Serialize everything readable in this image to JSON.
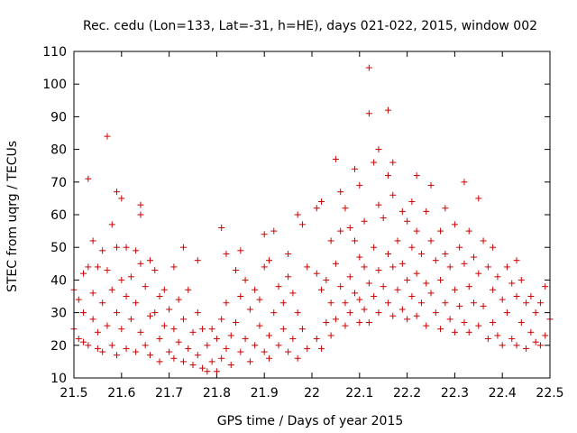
{
  "chart_data": {
    "type": "scatter",
    "title": "Rec. cedu (Lon=133, Lat=-31, h=HE), days 021-022, 2015, window 002",
    "xlabel": "GPS time / Days of year 2015",
    "ylabel": "STEC from uqrg / TECUs",
    "xlim": [
      21.5,
      22.5
    ],
    "ylim": [
      10,
      110
    ],
    "xticks": [
      "21.5",
      "21.6",
      "21.7",
      "21.8",
      "21.9",
      "22",
      "22.1",
      "22.2",
      "22.3",
      "22.4",
      "22.5"
    ],
    "yticks": [
      "10",
      "20",
      "30",
      "40",
      "50",
      "60",
      "70",
      "80",
      "90",
      "100",
      "110"
    ],
    "marker": "+",
    "color": "#cc0000",
    "series": [
      {
        "name": "STEC",
        "points": [
          [
            21.5,
            37
          ],
          [
            21.5,
            25
          ],
          [
            21.51,
            22
          ],
          [
            21.51,
            34
          ],
          [
            21.52,
            42
          ],
          [
            21.52,
            21
          ],
          [
            21.52,
            30
          ],
          [
            21.53,
            71
          ],
          [
            21.53,
            44
          ],
          [
            21.53,
            20
          ],
          [
            21.54,
            52
          ],
          [
            21.54,
            28
          ],
          [
            21.54,
            36
          ],
          [
            21.55,
            44
          ],
          [
            21.55,
            24
          ],
          [
            21.55,
            19
          ],
          [
            21.56,
            49
          ],
          [
            21.56,
            33
          ],
          [
            21.56,
            18
          ],
          [
            21.57,
            84
          ],
          [
            21.57,
            43
          ],
          [
            21.57,
            26
          ],
          [
            21.58,
            57
          ],
          [
            21.58,
            37
          ],
          [
            21.58,
            20
          ],
          [
            21.59,
            67
          ],
          [
            21.59,
            50
          ],
          [
            21.59,
            30
          ],
          [
            21.59,
            17
          ],
          [
            21.6,
            65
          ],
          [
            21.6,
            40
          ],
          [
            21.6,
            25
          ],
          [
            21.61,
            50
          ],
          [
            21.61,
            35
          ],
          [
            21.61,
            19
          ],
          [
            21.62,
            41
          ],
          [
            21.62,
            28
          ],
          [
            21.63,
            49
          ],
          [
            21.63,
            33
          ],
          [
            21.63,
            18
          ],
          [
            21.64,
            63
          ],
          [
            21.64,
            60
          ],
          [
            21.64,
            45
          ],
          [
            21.64,
            24
          ],
          [
            21.65,
            38
          ],
          [
            21.65,
            20
          ],
          [
            21.66,
            46
          ],
          [
            21.66,
            29
          ],
          [
            21.66,
            17
          ],
          [
            21.67,
            43
          ],
          [
            21.67,
            30
          ],
          [
            21.68,
            35
          ],
          [
            21.68,
            22
          ],
          [
            21.68,
            15
          ],
          [
            21.69,
            37
          ],
          [
            21.69,
            26
          ],
          [
            21.7,
            31
          ],
          [
            21.7,
            18
          ],
          [
            21.71,
            44
          ],
          [
            21.71,
            25
          ],
          [
            21.71,
            16
          ],
          [
            21.72,
            34
          ],
          [
            21.72,
            21
          ],
          [
            21.73,
            50
          ],
          [
            21.73,
            28
          ],
          [
            21.73,
            15
          ],
          [
            21.74,
            37
          ],
          [
            21.74,
            19
          ],
          [
            21.75,
            24
          ],
          [
            21.75,
            14
          ],
          [
            21.76,
            46
          ],
          [
            21.76,
            30
          ],
          [
            21.76,
            17
          ],
          [
            21.77,
            25
          ],
          [
            21.77,
            13
          ],
          [
            21.78,
            20
          ],
          [
            21.78,
            12
          ],
          [
            21.79,
            25
          ],
          [
            21.79,
            15
          ],
          [
            21.8,
            22
          ],
          [
            21.8,
            12
          ],
          [
            21.81,
            56
          ],
          [
            21.81,
            28
          ],
          [
            21.81,
            16
          ],
          [
            21.82,
            48
          ],
          [
            21.82,
            33
          ],
          [
            21.82,
            19
          ],
          [
            21.83,
            23
          ],
          [
            21.83,
            14
          ],
          [
            21.84,
            43
          ],
          [
            21.84,
            27
          ],
          [
            21.85,
            49
          ],
          [
            21.85,
            35
          ],
          [
            21.85,
            18
          ],
          [
            21.86,
            40
          ],
          [
            21.86,
            22
          ],
          [
            21.87,
            31
          ],
          [
            21.87,
            15
          ],
          [
            21.88,
            37
          ],
          [
            21.88,
            20
          ],
          [
            21.89,
            34
          ],
          [
            21.89,
            26
          ],
          [
            21.9,
            54
          ],
          [
            21.9,
            44
          ],
          [
            21.9,
            18
          ],
          [
            21.91,
            46
          ],
          [
            21.91,
            23
          ],
          [
            21.91,
            16
          ],
          [
            21.92,
            55
          ],
          [
            21.92,
            30
          ],
          [
            21.93,
            38
          ],
          [
            21.93,
            20
          ],
          [
            21.94,
            33
          ],
          [
            21.94,
            25
          ],
          [
            21.95,
            48
          ],
          [
            21.95,
            41
          ],
          [
            21.95,
            18
          ],
          [
            21.96,
            36
          ],
          [
            21.96,
            22
          ],
          [
            21.97,
            60
          ],
          [
            21.97,
            30
          ],
          [
            21.97,
            16
          ],
          [
            21.98,
            57
          ],
          [
            21.98,
            25
          ],
          [
            21.99,
            44
          ],
          [
            21.99,
            19
          ],
          [
            22.01,
            62
          ],
          [
            22.01,
            42
          ],
          [
            22.01,
            22
          ],
          [
            22.02,
            64
          ],
          [
            22.02,
            37
          ],
          [
            22.02,
            19
          ],
          [
            22.03,
            40
          ],
          [
            22.03,
            27
          ],
          [
            22.04,
            52
          ],
          [
            22.04,
            33
          ],
          [
            22.04,
            23
          ],
          [
            22.05,
            77
          ],
          [
            22.05,
            45
          ],
          [
            22.05,
            28
          ],
          [
            22.06,
            67
          ],
          [
            22.06,
            55
          ],
          [
            22.06,
            38
          ],
          [
            22.07,
            62
          ],
          [
            22.07,
            33
          ],
          [
            22.07,
            26
          ],
          [
            22.08,
            56
          ],
          [
            22.08,
            41
          ],
          [
            22.08,
            30
          ],
          [
            22.09,
            74
          ],
          [
            22.09,
            52
          ],
          [
            22.09,
            36
          ],
          [
            22.1,
            69
          ],
          [
            22.1,
            47
          ],
          [
            22.1,
            34
          ],
          [
            22.1,
            27
          ],
          [
            22.11,
            58
          ],
          [
            22.11,
            44
          ],
          [
            22.11,
            31
          ],
          [
            22.12,
            105
          ],
          [
            22.12,
            91
          ],
          [
            22.12,
            39
          ],
          [
            22.12,
            27
          ],
          [
            22.13,
            76
          ],
          [
            22.13,
            50
          ],
          [
            22.13,
            35
          ],
          [
            22.14,
            80
          ],
          [
            22.14,
            63
          ],
          [
            22.14,
            43
          ],
          [
            22.14,
            30
          ],
          [
            22.15,
            59
          ],
          [
            22.15,
            38
          ],
          [
            22.16,
            92
          ],
          [
            22.16,
            72
          ],
          [
            22.16,
            48
          ],
          [
            22.16,
            33
          ],
          [
            22.17,
            76
          ],
          [
            22.17,
            66
          ],
          [
            22.17,
            44
          ],
          [
            22.17,
            29
          ],
          [
            22.18,
            52
          ],
          [
            22.18,
            37
          ],
          [
            22.19,
            61
          ],
          [
            22.19,
            45
          ],
          [
            22.19,
            31
          ],
          [
            22.2,
            58
          ],
          [
            22.2,
            40
          ],
          [
            22.2,
            28
          ],
          [
            22.21,
            64
          ],
          [
            22.21,
            50
          ],
          [
            22.21,
            35
          ],
          [
            22.22,
            72
          ],
          [
            22.22,
            55
          ],
          [
            22.22,
            42
          ],
          [
            22.22,
            29
          ],
          [
            22.23,
            48
          ],
          [
            22.23,
            33
          ],
          [
            22.24,
            61
          ],
          [
            22.24,
            39
          ],
          [
            22.24,
            26
          ],
          [
            22.25,
            69
          ],
          [
            22.25,
            52
          ],
          [
            22.25,
            36
          ],
          [
            22.26,
            46
          ],
          [
            22.26,
            30
          ],
          [
            22.27,
            55
          ],
          [
            22.27,
            40
          ],
          [
            22.27,
            25
          ],
          [
            22.28,
            62
          ],
          [
            22.28,
            48
          ],
          [
            22.28,
            33
          ],
          [
            22.29,
            44
          ],
          [
            22.29,
            28
          ],
          [
            22.3,
            57
          ],
          [
            22.3,
            37
          ],
          [
            22.3,
            24
          ],
          [
            22.31,
            50
          ],
          [
            22.31,
            32
          ],
          [
            22.32,
            70
          ],
          [
            22.32,
            45
          ],
          [
            22.32,
            27
          ],
          [
            22.33,
            55
          ],
          [
            22.33,
            38
          ],
          [
            22.33,
            24
          ],
          [
            22.34,
            47
          ],
          [
            22.34,
            33
          ],
          [
            22.35,
            65
          ],
          [
            22.35,
            42
          ],
          [
            22.35,
            26
          ],
          [
            22.36,
            52
          ],
          [
            22.36,
            32
          ],
          [
            22.37,
            44
          ],
          [
            22.37,
            22
          ],
          [
            22.38,
            50
          ],
          [
            22.38,
            37
          ],
          [
            22.38,
            27
          ],
          [
            22.39,
            41
          ],
          [
            22.39,
            23
          ],
          [
            22.4,
            34
          ],
          [
            22.4,
            20
          ],
          [
            22.41,
            44
          ],
          [
            22.41,
            30
          ],
          [
            22.42,
            39
          ],
          [
            22.42,
            22
          ],
          [
            22.43,
            46
          ],
          [
            22.43,
            35
          ],
          [
            22.43,
            20
          ],
          [
            22.44,
            40
          ],
          [
            22.44,
            27
          ],
          [
            22.45,
            33
          ],
          [
            22.45,
            19
          ],
          [
            22.46,
            35
          ],
          [
            22.46,
            24
          ],
          [
            22.47,
            30
          ],
          [
            22.47,
            21
          ],
          [
            22.48,
            33
          ],
          [
            22.48,
            20
          ],
          [
            22.49,
            38
          ],
          [
            22.49,
            23
          ],
          [
            22.5,
            28
          ]
        ]
      }
    ]
  }
}
